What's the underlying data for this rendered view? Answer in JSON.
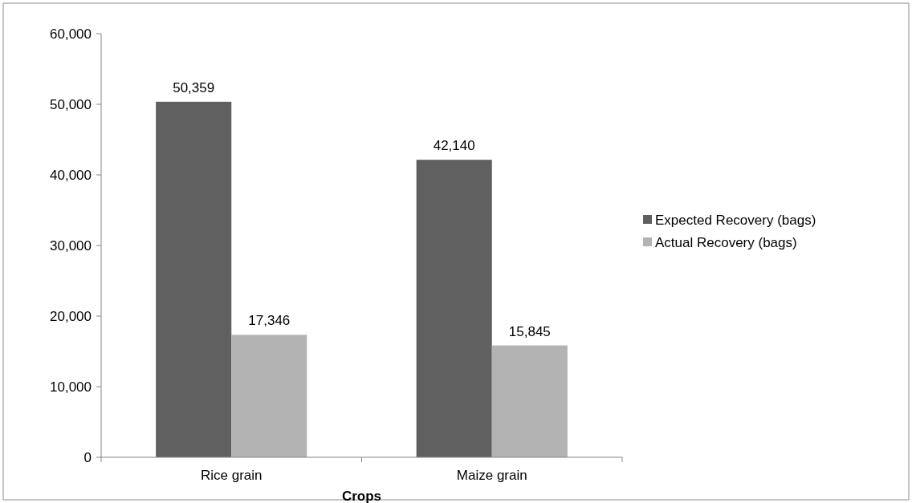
{
  "chart_data": {
    "type": "bar",
    "xlabel": "Crops",
    "categories": [
      "Rice grain",
      "Maize grain"
    ],
    "series": [
      {
        "name": "Expected Recovery (bags)",
        "color": "#606060",
        "values": [
          50359,
          42140
        ],
        "value_labels": [
          "50,359",
          "42,140"
        ]
      },
      {
        "name": "Actual Recovery (bags)",
        "color": "#b3b3b3",
        "values": [
          17346,
          15845
        ],
        "value_labels": [
          "17,346",
          "15,845"
        ]
      }
    ],
    "ylim": [
      0,
      60000
    ],
    "yticks": [
      {
        "value": 0,
        "label": "0"
      },
      {
        "value": 10000,
        "label": "10,000"
      },
      {
        "value": 20000,
        "label": "20,000"
      },
      {
        "value": 30000,
        "label": "30,000"
      },
      {
        "value": 40000,
        "label": "40,000"
      },
      {
        "value": 50000,
        "label": "50,000"
      },
      {
        "value": 60000,
        "label": "60,000"
      }
    ],
    "legend": "right",
    "grid": false
  }
}
